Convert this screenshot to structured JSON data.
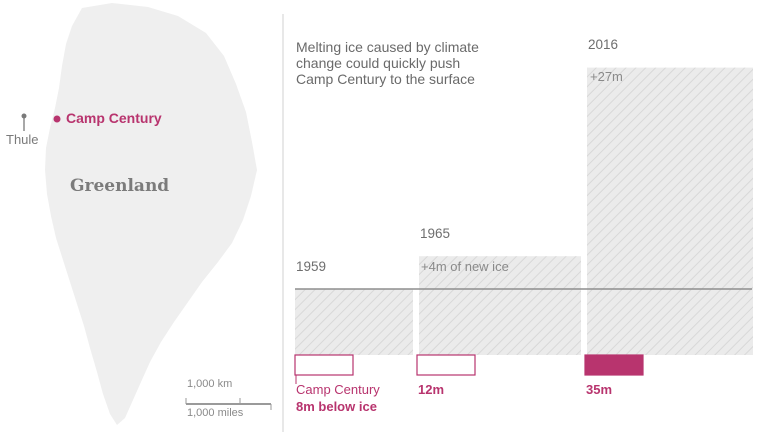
{
  "map": {
    "places": {
      "thule": "Thule",
      "camp_century": "Camp Century"
    },
    "country_label": "Greenland",
    "scale": {
      "km_label": "1,000 km",
      "miles_label": "1,000 miles"
    }
  },
  "intro_text": "Melting ice caused by climate change could quickly push Camp Century to the surface",
  "timeline": [
    {
      "year": "1959",
      "ice_label": "",
      "depth_label_line1": "Camp Century",
      "depth_label_line2": "8m below ice",
      "depth_m": 8,
      "ice_above_base_m": 0,
      "highlighted": false
    },
    {
      "year": "1965",
      "ice_label": "+4m of new ice",
      "depth_label_line1": "12m",
      "depth_label_line2": "",
      "depth_m": 12,
      "ice_above_base_m": 4,
      "highlighted": false
    },
    {
      "year": "2016",
      "ice_label": "+27m",
      "depth_label_line1": "35m",
      "depth_label_line2": "",
      "depth_m": 35,
      "ice_above_base_m": 27,
      "highlighted": true
    }
  ],
  "colors": {
    "accent": "#b8346e",
    "landmass": "#efefef",
    "ice_fill": "#ebebeb",
    "hatch_line": "#d6d6d6",
    "surface_line": "#8e8e8e",
    "divider": "#d0d0d0"
  }
}
